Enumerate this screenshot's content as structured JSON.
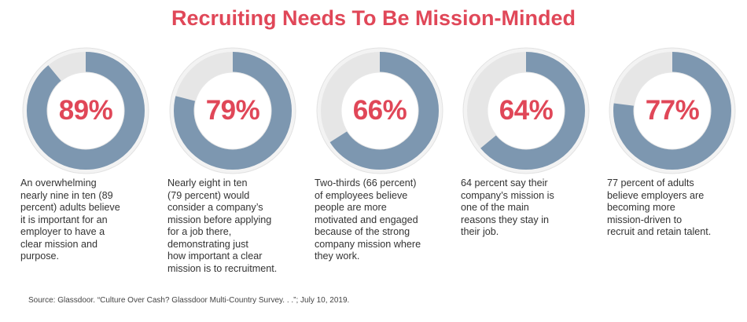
{
  "title": "Recruiting Needs To Be Mission-Minded",
  "colors": {
    "accent": "#e04758",
    "fill": "#7d97b0",
    "track": "#e6e6e6"
  },
  "chart_data": {
    "type": "donut",
    "items": [
      {
        "value": 89,
        "label": "89%",
        "description": "An overwhelming\nnearly nine in ten (89\npercent) adults believe\nit is important for an\nemployer to have a\nclear mission and\npurpose."
      },
      {
        "value": 79,
        "label": "79%",
        "description": "Nearly eight in ten\n(79 percent) would\nconsider a company’s\nmission before applying\nfor a job there,\ndemonstrating just\nhow important a clear\nmission is to recruitment."
      },
      {
        "value": 66,
        "label": "66%",
        "description": "Two-thirds (66 percent)\nof employees believe\npeople are more\nmotivated and engaged\nbecause of the strong\ncompany mission where\nthey work."
      },
      {
        "value": 64,
        "label": "64%",
        "description": "64 percent say their\ncompany’s mission is\none of the main\nreasons they stay in\ntheir job."
      },
      {
        "value": 77,
        "label": "77%",
        "description": "77 percent of adults\nbelieve employers are\nbecoming more\nmission-driven to\nrecruit and retain talent."
      }
    ]
  },
  "source": "Source: Glassdoor. “Culture Over Cash? Glassdoor Multi-Country Survey. . .”; July 10, 2019."
}
